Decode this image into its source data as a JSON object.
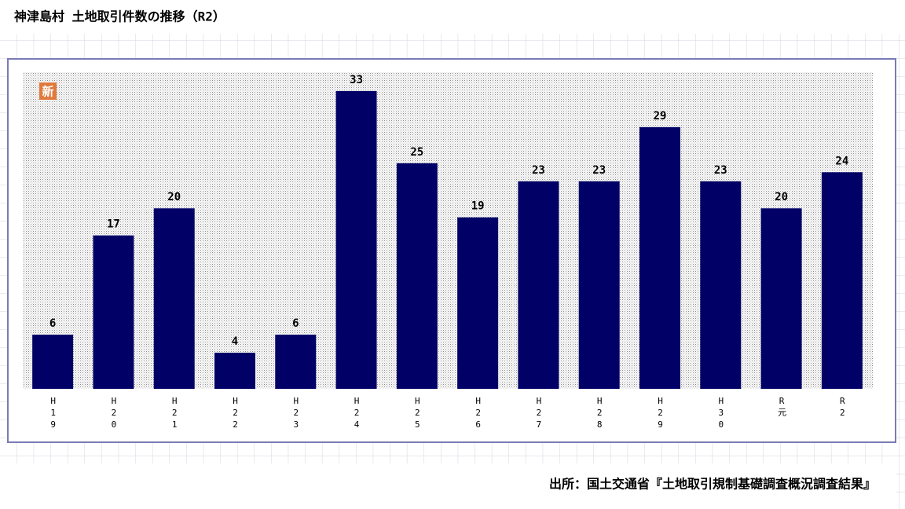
{
  "chart_data": {
    "type": "bar",
    "title": "神津島村 土地取引件数の推移（R2）",
    "badge": "新",
    "categories": [
      "H19",
      "H20",
      "H21",
      "H22",
      "H23",
      "H24",
      "H25",
      "H26",
      "H27",
      "H28",
      "H29",
      "H30",
      "R元",
      "R2"
    ],
    "values": [
      6,
      17,
      20,
      4,
      6,
      33,
      25,
      19,
      23,
      23,
      29,
      23,
      20,
      24
    ],
    "color": "#000066",
    "source": "出所：国土交通省『土地取引規制基礎調査概況調査結果』"
  }
}
